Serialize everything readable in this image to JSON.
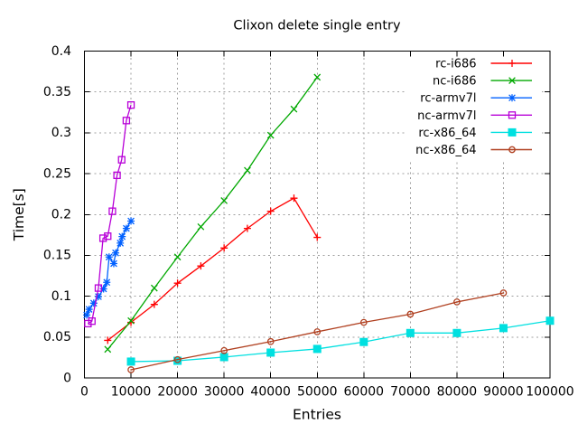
{
  "title": "Clixon delete single entry",
  "chart_data": {
    "type": "line",
    "title": "Clixon delete single entry",
    "xlabel": "Entries",
    "ylabel": "Time[s]",
    "xlim": [
      0,
      100000
    ],
    "ylim": [
      0,
      0.4
    ],
    "xticks": [
      0,
      10000,
      20000,
      30000,
      40000,
      50000,
      60000,
      70000,
      80000,
      90000,
      100000
    ],
    "yticks": [
      0,
      0.05,
      0.1,
      0.15,
      0.2,
      0.25,
      0.3,
      0.35,
      0.4
    ],
    "ytick_labels": [
      "0",
      "0.05",
      "0.1",
      "0.15",
      "0.2",
      "0.25",
      "0.3",
      "0.35",
      "0.4"
    ],
    "grid": true,
    "legend_position": "top-right-inside",
    "legend_opaque": true,
    "colors": {
      "background": "#ffffff",
      "grid": "#a0a0a0",
      "axis": "#000000",
      "text": "#000000"
    },
    "series": [
      {
        "name": "rc-i686",
        "color": "#ff0000",
        "marker": "plus",
        "x": [
          5000,
          10000,
          15000,
          20000,
          25000,
          30000,
          35000,
          40000,
          45000,
          50000
        ],
        "y": [
          0.046,
          0.068,
          0.09,
          0.116,
          0.137,
          0.159,
          0.183,
          0.204,
          0.22,
          0.172
        ]
      },
      {
        "name": "nc-i686",
        "color": "#00a800",
        "marker": "x",
        "x": [
          5000,
          10000,
          15000,
          20000,
          25000,
          30000,
          35000,
          40000,
          45000,
          50000
        ],
        "y": [
          0.035,
          0.07,
          0.11,
          0.148,
          0.185,
          0.217,
          0.254,
          0.297,
          0.329,
          0.368
        ]
      },
      {
        "name": "rc-armv7l",
        "color": "#0060ff",
        "marker": "asterisk",
        "x": [
          500,
          1000,
          2000,
          3000,
          4100,
          4800,
          5300,
          6300,
          6700,
          7700,
          8100,
          9000,
          10000
        ],
        "y": [
          0.077,
          0.084,
          0.0915,
          0.0995,
          0.109,
          0.117,
          0.148,
          0.14,
          0.153,
          0.165,
          0.173,
          0.183,
          0.192
        ]
      },
      {
        "name": "nc-armv7l",
        "color": "#b800d8",
        "marker": "square-open",
        "x": [
          750,
          1600,
          3000,
          4000,
          5000,
          6000,
          7000,
          8000,
          9000,
          10000
        ],
        "y": [
          0.0665,
          0.0695,
          0.11,
          0.171,
          0.1735,
          0.204,
          0.248,
          0.267,
          0.315,
          0.334
        ]
      },
      {
        "name": "rc-x86_64",
        "color": "#00e0e0",
        "marker": "square-filled",
        "x": [
          10000,
          20000,
          30000,
          40000,
          50000,
          60000,
          70000,
          80000,
          90000,
          100000
        ],
        "y": [
          0.02,
          0.021,
          0.0255,
          0.031,
          0.0355,
          0.044,
          0.055,
          0.055,
          0.061,
          0.07
        ]
      },
      {
        "name": "nc-x86_64",
        "color": "#b04020",
        "marker": "circle-open",
        "x": [
          10000,
          20000,
          30000,
          40000,
          50000,
          60000,
          70000,
          80000,
          90000
        ],
        "y": [
          0.01,
          0.0225,
          0.0335,
          0.0445,
          0.0565,
          0.068,
          0.078,
          0.093,
          0.104
        ]
      }
    ]
  }
}
